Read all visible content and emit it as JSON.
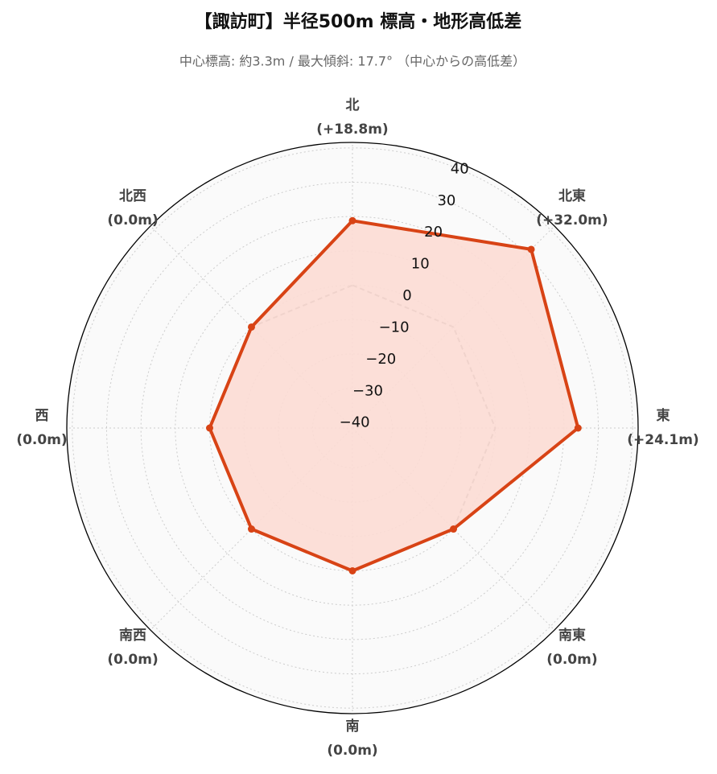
{
  "chart_data": {
    "type": "radar",
    "title": "【諏訪町】半径500m 標高・地形高低差",
    "subtitle": "中心標高: 約3.3m / 最大傾斜: 17.7° （中心からの高低差）",
    "categories": [
      "北",
      "北東",
      "東",
      "南東",
      "南",
      "南西",
      "西",
      "北西"
    ],
    "series": [
      {
        "color": "#888888",
        "dashed": true,
        "values": [
          0,
          0,
          0,
          0,
          0,
          0,
          0,
          0
        ]
      },
      {
        "color": "#d84315",
        "fill": "#fcdcd4",
        "values": [
          18.8,
          32.0,
          24.1,
          0.0,
          0.0,
          0.0,
          0.0,
          0.0
        ],
        "value_labels": [
          "(+18.8m)",
          "(+32.0m)",
          "(+24.1m)",
          "(0.0m)",
          "(0.0m)",
          "(0.0m)",
          "(0.0m)",
          "(0.0m)"
        ]
      }
    ],
    "ylim": [
      -41.6,
      41.6
    ],
    "yticks": [
      {
        "value": -40,
        "label": "−40"
      },
      {
        "value": -30,
        "label": "−30"
      },
      {
        "value": -20,
        "label": "−20"
      },
      {
        "value": -10,
        "label": "−10"
      },
      0,
      10,
      20,
      30,
      40
    ],
    "grid": true
  }
}
